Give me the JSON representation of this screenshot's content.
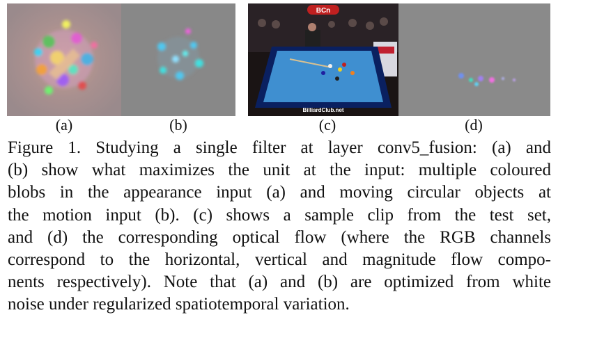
{
  "panels": [
    {
      "id": "a",
      "label": "(a)",
      "description_icon": "appearance-input-visualization"
    },
    {
      "id": "b",
      "label": "(b)",
      "description_icon": "motion-input-visualization"
    },
    {
      "id": "c",
      "label": "(c)",
      "description_icon": "billiards-video-frame",
      "logo_text": "BCn",
      "watermark": "BilliardClub.net"
    },
    {
      "id": "d",
      "label": "(d)",
      "description_icon": "optical-flow-visualization"
    }
  ],
  "caption": {
    "lines": [
      "Figure 1. Studying a single filter at layer conv5_fusion: (a) and",
      "(b) show what maximizes the unit at the input: multiple coloured",
      "blobs in the appearance input (a) and moving circular objects at",
      "the motion input (b).  (c) shows a sample clip from the test set,",
      "and (d) the corresponding optical flow (where the RGB channels",
      "correspond to the horizontal, vertical and magnitude flow compo-",
      "nents respectively). Note that (a) and (b) are optimized from white",
      "noise under regularized spatiotemporal variation."
    ]
  },
  "colors": {
    "gray_background": "#8a8a8a",
    "table_felt": "#3f8fd0",
    "table_rail": "#0a2060"
  }
}
